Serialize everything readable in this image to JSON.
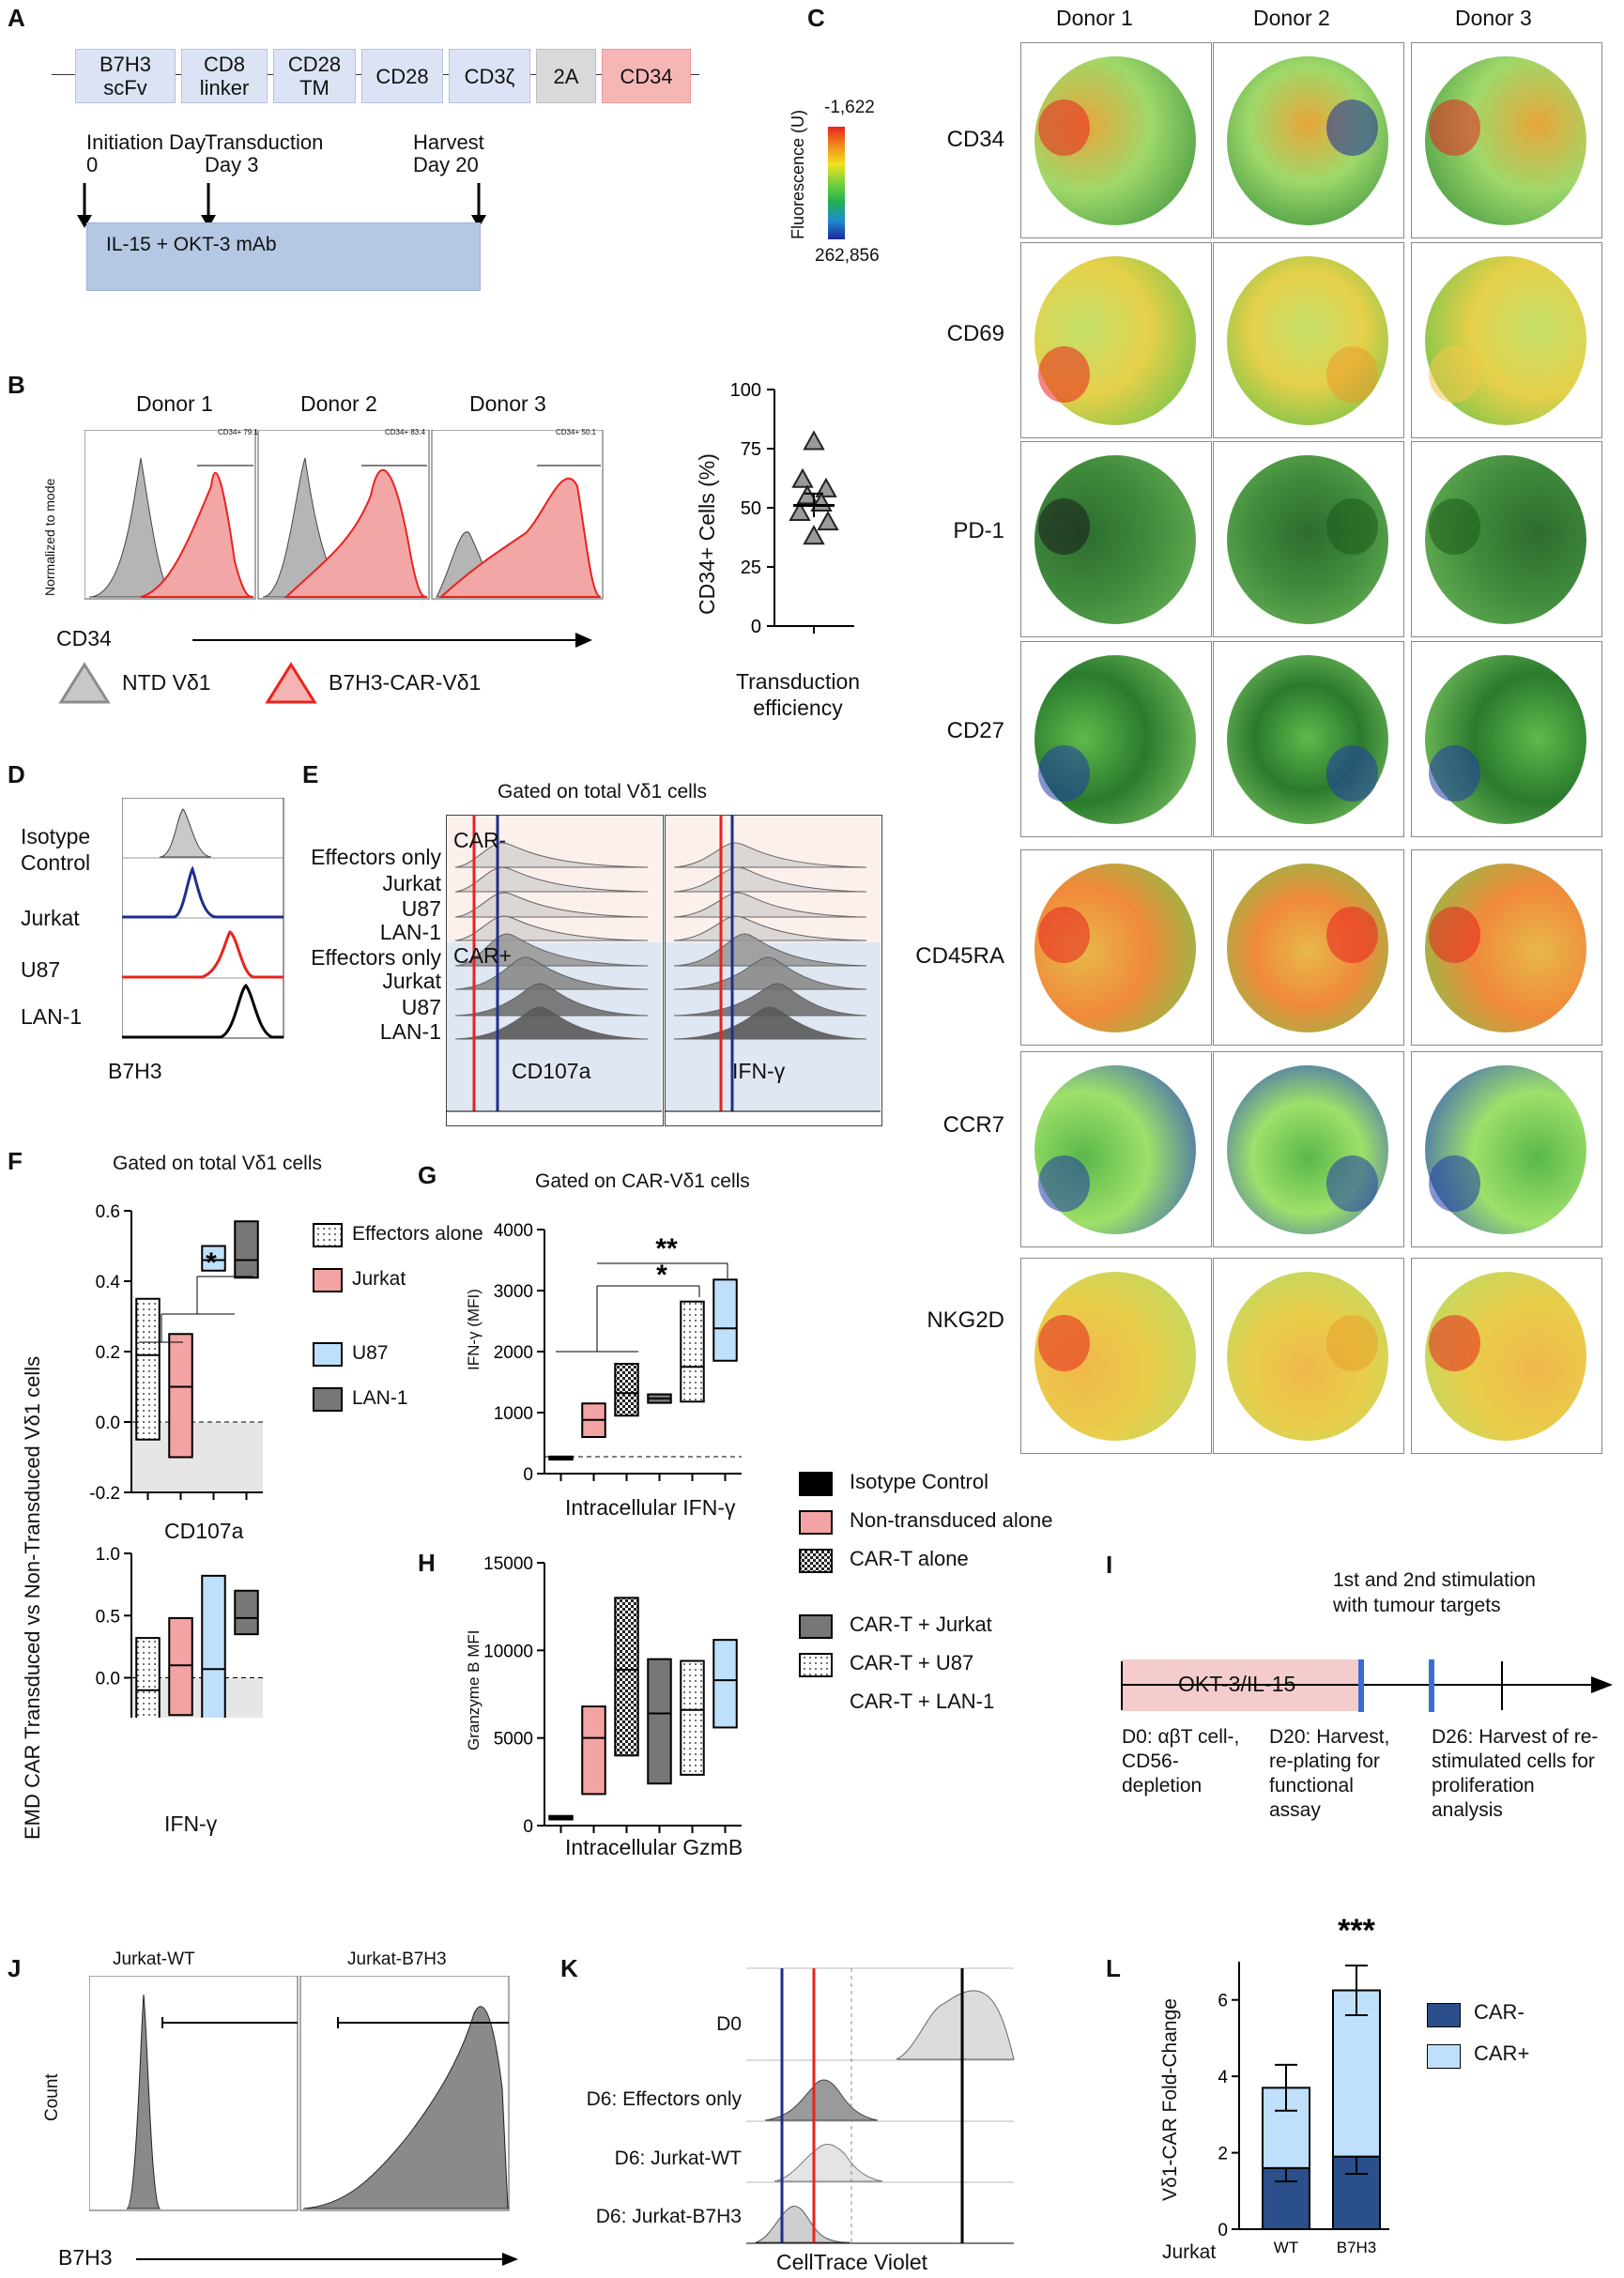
{
  "panelA": {
    "letter": "A",
    "construct": [
      "B7H3 scFv",
      "CD8 linker",
      "CD28 TM",
      "CD28",
      "CD3ζ",
      "2A",
      "CD34"
    ],
    "timeline": [
      {
        "label": "Initiation Day 0"
      },
      {
        "label": "Transduction Day 3"
      },
      {
        "label": "Harvest Day 20"
      }
    ],
    "culture_box": "IL-15 + OKT-3 mAb"
  },
  "panelB": {
    "letter": "B",
    "donors": [
      "Donor 1",
      "Donor 2",
      "Donor 3"
    ],
    "ylabel": "Normalized to mode",
    "xlabel": "CD34",
    "gate_labels": [
      "CD34+ 79.1",
      "CD34+ 83.4",
      "CD34+ 50.1"
    ],
    "legend": [
      "NTD Vδ1",
      "B7H3-CAR-Vδ1"
    ],
    "scatter": {
      "ylabel": "CD34+ Cells (%)",
      "xlabel": "Transduction efficiency",
      "yticks": [
        "0",
        "25",
        "50",
        "75",
        "100"
      ]
    }
  },
  "chart_data": [
    {
      "type": "scatter",
      "panel": "B",
      "title": "",
      "xlabel": "Transduction efficiency",
      "ylabel": "CD34+ Cells (%)",
      "ylim": [
        0,
        100
      ],
      "values": [
        78,
        62,
        58,
        55,
        52,
        48,
        44,
        38
      ],
      "mean": 51,
      "sem": 5
    },
    {
      "type": "bar",
      "panel": "F-top",
      "title": "Gated on total Vδ1 cells",
      "xlabel": "CD107a",
      "ylabel": "EMD CAR Transduced vs Non-Transduced Vδ1 cells",
      "ylim": [
        -0.2,
        0.6
      ],
      "yticks": [
        "-0.2",
        "0.0",
        "0.2",
        "0.4",
        "0.6"
      ],
      "categories": [
        "Effectors alone",
        "Jurkat",
        "U87",
        "LAN-1"
      ],
      "floating_bars": [
        {
          "min": -0.05,
          "median": 0.19,
          "max": 0.35
        },
        {
          "min": -0.1,
          "median": 0.1,
          "max": 0.25
        },
        {
          "min": 0.43,
          "median": 0.46,
          "max": 0.5
        },
        {
          "min": 0.41,
          "median": 0.46,
          "max": 0.57
        }
      ],
      "significance": "*"
    },
    {
      "type": "bar",
      "panel": "F-bottom",
      "xlabel": "IFN-γ",
      "ylim": [
        -1.0,
        1.0
      ],
      "yticks": [
        "-1.0",
        "-0.5",
        "0.0",
        "0.5",
        "1.0"
      ],
      "categories": [
        "Effectors alone",
        "Jurkat",
        "U87",
        "LAN-1"
      ],
      "floating_bars": [
        {
          "min": -0.9,
          "median": -0.1,
          "max": 0.32
        },
        {
          "min": -0.3,
          "median": 0.1,
          "max": 0.48
        },
        {
          "min": -1.03,
          "median": 0.07,
          "max": 0.82
        },
        {
          "min": 0.35,
          "median": 0.48,
          "max": 0.7
        }
      ]
    },
    {
      "type": "bar",
      "panel": "G",
      "title": "Gated on CAR-Vδ1 cells",
      "xlabel": "Intracellular IFN-γ",
      "ylabel": "IFN-γ (MFI)",
      "ylim": [
        0,
        4000
      ],
      "yticks": [
        "0",
        "1000",
        "2000",
        "3000",
        "4000"
      ],
      "categories": [
        "Isotype Control",
        "Non-transduced alone",
        "CAR-T alone",
        "CAR-T + Jurkat",
        "CAR-T + U87",
        "CAR-T + LAN-1"
      ],
      "floating_bars": [
        {
          "min": 230,
          "median": 250,
          "max": 280
        },
        {
          "min": 600,
          "median": 880,
          "max": 1150
        },
        {
          "min": 950,
          "median": 1320,
          "max": 1800
        },
        {
          "min": 1160,
          "median": 1230,
          "max": 1300
        },
        {
          "min": 1180,
          "median": 1750,
          "max": 2820
        },
        {
          "min": 1850,
          "median": 2380,
          "max": 3180
        }
      ],
      "significance": [
        "*",
        "**"
      ]
    },
    {
      "type": "bar",
      "panel": "H",
      "xlabel": "Intracellular GzmB",
      "ylabel": "Granzyme B MFI",
      "ylim": [
        0,
        15000
      ],
      "yticks": [
        "0",
        "5000",
        "10000",
        "15000"
      ],
      "categories": [
        "Isotype Control",
        "Non-transduced alone",
        "CAR-T alone",
        "CAR-T + Jurkat",
        "CAR-T + U87",
        "CAR-T + LAN-1"
      ],
      "floating_bars": [
        {
          "min": 350,
          "median": 450,
          "max": 550
        },
        {
          "min": 1800,
          "median": 5000,
          "max": 6800
        },
        {
          "min": 4000,
          "median": 8900,
          "max": 13000
        },
        {
          "min": 2400,
          "median": 6400,
          "max": 9500
        },
        {
          "min": 2900,
          "median": 6600,
          "max": 9400
        },
        {
          "min": 5600,
          "median": 8300,
          "max": 10600
        }
      ]
    },
    {
      "type": "bar",
      "panel": "L",
      "xlabel": "Jurkat",
      "ylabel": "Vδ1-CAR Fold-Change",
      "ylim": [
        0,
        7
      ],
      "yticks": [
        "0",
        "2",
        "4",
        "6"
      ],
      "categories": [
        "WT",
        "B7H3"
      ],
      "series": [
        {
          "name": "CAR-",
          "values": [
            1.6,
            1.9
          ],
          "err": [
            0.35,
            0.45
          ]
        },
        {
          "name": "CAR+",
          "values": [
            2.1,
            4.35
          ],
          "err": [
            0.6,
            0.65
          ]
        }
      ],
      "significance": "***"
    }
  ],
  "panelC": {
    "letter": "C",
    "donors": [
      "Donor 1",
      "Donor 2",
      "Donor 3"
    ],
    "markers": [
      "CD34",
      "CD69",
      "PD-1",
      "CD27",
      "CD45RA",
      "CCR7",
      "NKG2D"
    ],
    "colorbar_title": "Fluorescence (U)",
    "colorbar_top": "-1,622",
    "colorbar_bottom": "262,856"
  },
  "panelD": {
    "letter": "D",
    "rows": [
      "Isotype Control",
      "Jurkat",
      "U87",
      "LAN-1"
    ],
    "xlabel": "B7H3"
  },
  "panelE": {
    "letter": "E",
    "title": "Gated on total Vδ1 cells",
    "rows": [
      "Effectors only",
      "Jurkat",
      "U87",
      "LAN-1",
      "Effectors only",
      "Jurkat",
      "U87",
      "LAN-1"
    ],
    "car_minus": "CAR-",
    "car_plus": "CAR+",
    "xlabels": [
      "CD107a",
      "IFN-γ"
    ]
  },
  "panelF": {
    "letter": "F",
    "legend": [
      "Effectors alone",
      "Jurkat",
      "U87",
      "LAN-1"
    ]
  },
  "panelG": {
    "letter": "G"
  },
  "panelH": {
    "letter": "H"
  },
  "panelGH_legend": [
    "Isotype Control",
    "Non-transduced alone",
    "CAR-T alone",
    "CAR-T + Jurkat",
    "CAR-T + U87",
    "CAR-T + LAN-1"
  ],
  "panelI": {
    "letter": "I",
    "culture": "OKT-3/IL-15",
    "stim_title": "1st and 2nd stimulation with tumour targets",
    "d0": "D0: αβT cell-, CD56- depletion",
    "d20": "D20: Harvest, re-plating for functional assay",
    "d26": "D26: Harvest of re-stimulated cells for proliferation analysis"
  },
  "panelJ": {
    "letter": "J",
    "titles": [
      "Jurkat-WT",
      "Jurkat-B7H3"
    ],
    "ylabel": "Count",
    "xlabel": "B7H3"
  },
  "panelK": {
    "letter": "K",
    "rows": [
      "D0",
      "D6: Effectors only",
      "D6: Jurkat-WT",
      "D6: Jurkat-B7H3"
    ],
    "xlabel": "CellTrace Violet"
  },
  "panelL": {
    "letter": "L",
    "legend": [
      "CAR-",
      "CAR+"
    ]
  },
  "colors": {
    "red": "#e8231f",
    "pink": "#f1a6a6",
    "lightblue": "#bfe0fa",
    "navy": "#2a4f8a",
    "gray": "#8c8c8c",
    "darkgray": "#555555"
  }
}
